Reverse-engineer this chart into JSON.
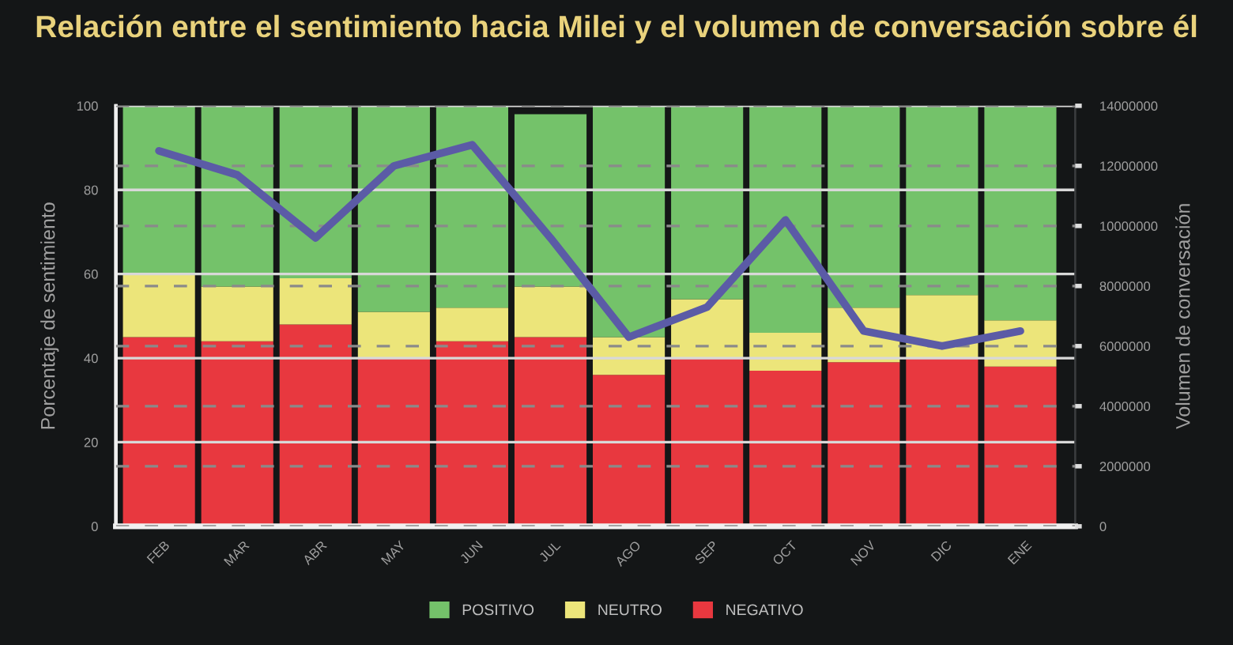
{
  "chart_data": {
    "type": "bar",
    "stacked": true,
    "title": "Relación entre el sentimiento hacia Milei y el volumen de conversación sobre él",
    "ylabel": "Porcentaje de sentimiento",
    "y2label": "Volumen de conversación",
    "categories": [
      "FEB",
      "MAR",
      "ABR",
      "MAY",
      "JUN",
      "JUL",
      "AGO",
      "SEP",
      "OCT",
      "NOV",
      "DIC",
      "ENE"
    ],
    "series": [
      {
        "name": "NEGATIVO",
        "color": "#e8383f",
        "values": [
          45,
          44,
          48,
          40,
          44,
          45,
          36,
          40,
          37,
          39,
          40,
          38
        ]
      },
      {
        "name": "NEUTRO",
        "color": "#ece57a",
        "values": [
          15,
          13,
          11,
          11,
          8,
          12,
          9,
          14,
          9,
          13,
          15,
          11
        ]
      },
      {
        "name": "POSITIVO",
        "color": "#74c26a",
        "values": [
          40,
          43,
          41,
          49,
          48,
          41,
          55,
          46,
          54,
          48,
          45,
          51
        ]
      },
      {
        "type": "line",
        "axis": "y2",
        "color": "#5b5ba6",
        "values": [
          12500000,
          11700000,
          9600000,
          12000000,
          12700000,
          9600000,
          6300000,
          7300000,
          10200000,
          6500000,
          6000000,
          6500000
        ]
      }
    ],
    "ylim": [
      0,
      100
    ],
    "yticks": [
      0,
      20,
      40,
      60,
      80,
      100
    ],
    "y2lim": [
      0,
      14000000
    ],
    "y2ticks": [
      0,
      2000000,
      4000000,
      6000000,
      8000000,
      10000000,
      12000000,
      14000000
    ],
    "grid": "y",
    "legend": "bottom"
  }
}
